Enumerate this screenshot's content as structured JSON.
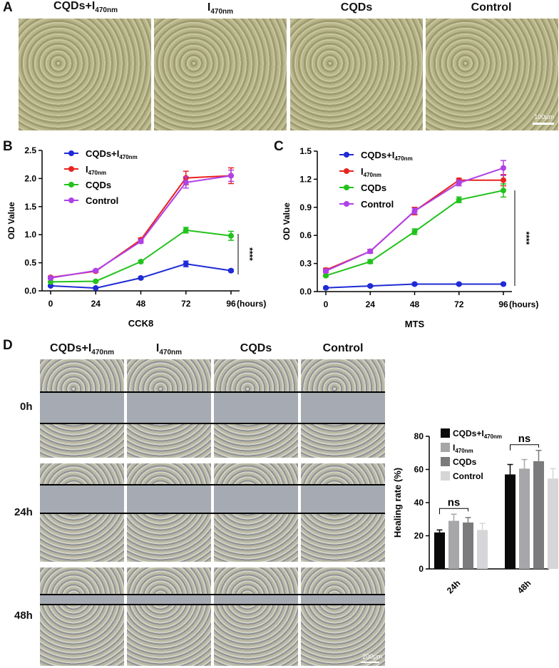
{
  "panel_labels": {
    "a": "A",
    "b": "B",
    "c": "C",
    "d": "D"
  },
  "panel_a": {
    "titles": [
      {
        "main": "CQDs+I",
        "sub": "470nm"
      },
      {
        "main": "I",
        "sub": "470nm"
      },
      {
        "main": "CQDs",
        "sub": ""
      },
      {
        "main": "Control",
        "sub": ""
      }
    ],
    "scale_bar": "100μm"
  },
  "panel_d": {
    "titles": [
      {
        "main": "CQDs+I",
        "sub": "470nm"
      },
      {
        "main": "I",
        "sub": "470nm"
      },
      {
        "main": "CQDs",
        "sub": ""
      },
      {
        "main": "Control",
        "sub": ""
      }
    ],
    "rows": [
      "0h",
      "24h",
      "48h"
    ],
    "scale_bar": "200μm"
  },
  "chart_data": [
    {
      "id": "B",
      "type": "line",
      "xlabel": "CCK8",
      "ylabel": "OD Value",
      "x": [
        0,
        24,
        48,
        72,
        96
      ],
      "x_ticks": [
        "0",
        "24",
        "48",
        "72",
        "96"
      ],
      "x_unit": "(hours)",
      "ylim": [
        0,
        2.5
      ],
      "y_ticks": [
        "0.0",
        "0.5",
        "1.0",
        "1.5",
        "2.0",
        "2.5"
      ],
      "series": [
        {
          "name": "CQDs+I",
          "sub": "470nm",
          "color": "#1f2bd6",
          "values": [
            0.09,
            0.05,
            0.23,
            0.48,
            0.36
          ],
          "err": [
            0.01,
            0.01,
            0.02,
            0.05,
            0.02
          ]
        },
        {
          "name": "I",
          "sub": "470nm",
          "color": "#e8231f",
          "values": [
            0.24,
            0.35,
            0.91,
            2.01,
            2.05
          ],
          "err": [
            0.02,
            0.02,
            0.03,
            0.12,
            0.14
          ]
        },
        {
          "name": "CQDs",
          "sub": "",
          "color": "#22c21c",
          "values": [
            0.16,
            0.17,
            0.52,
            1.08,
            0.98
          ],
          "err": [
            0.01,
            0.01,
            0.02,
            0.05,
            0.08
          ]
        },
        {
          "name": "Control",
          "sub": "",
          "color": "#b040e8",
          "values": [
            0.23,
            0.36,
            0.88,
            1.93,
            2.05
          ],
          "err": [
            0.02,
            0.02,
            0.03,
            0.1,
            0.1
          ]
        }
      ],
      "annotation": "****"
    },
    {
      "id": "C",
      "type": "line",
      "xlabel": "MTS",
      "ylabel": "OD Value",
      "x": [
        0,
        24,
        48,
        72,
        96
      ],
      "x_ticks": [
        "0",
        "24",
        "48",
        "72",
        "96"
      ],
      "x_unit": "(hours)",
      "ylim": [
        0,
        1.5
      ],
      "y_ticks": [
        "0.0",
        "0.3",
        "0.6",
        "0.9",
        "1.2",
        "1.5"
      ],
      "series": [
        {
          "name": "CQDs+I",
          "sub": "470nm",
          "color": "#1f2bd6",
          "values": [
            0.04,
            0.06,
            0.08,
            0.08,
            0.08
          ],
          "err": [
            0.01,
            0.01,
            0.01,
            0.01,
            0.01
          ]
        },
        {
          "name": "I",
          "sub": "470nm",
          "color": "#e8231f",
          "values": [
            0.23,
            0.43,
            0.86,
            1.19,
            1.19
          ],
          "err": [
            0.02,
            0.02,
            0.04,
            0.02,
            0.06
          ]
        },
        {
          "name": "CQDs",
          "sub": "",
          "color": "#22c21c",
          "values": [
            0.17,
            0.32,
            0.64,
            0.98,
            1.08
          ],
          "err": [
            0.01,
            0.02,
            0.03,
            0.03,
            0.07
          ]
        },
        {
          "name": "Control",
          "sub": "",
          "color": "#b040e8",
          "values": [
            0.22,
            0.43,
            0.86,
            1.16,
            1.32
          ],
          "err": [
            0.02,
            0.02,
            0.03,
            0.03,
            0.08
          ]
        }
      ],
      "annotation": "****"
    },
    {
      "id": "D",
      "type": "bar",
      "ylabel": "Healing rate (%)",
      "categories": [
        "24h",
        "48h"
      ],
      "ylim": [
        0,
        80
      ],
      "y_ticks": [
        "0",
        "20",
        "40",
        "60",
        "80"
      ],
      "series": [
        {
          "name": "CQDs+I",
          "sub": "470nm",
          "color": "#0a0a0a",
          "values": [
            22,
            57
          ],
          "err": [
            1.5,
            6
          ]
        },
        {
          "name": "I",
          "sub": "470nm",
          "color": "#a7a7a9",
          "values": [
            29,
            60.5
          ],
          "err": [
            4,
            5.5
          ]
        },
        {
          "name": "CQDs",
          "sub": "",
          "color": "#7b7b7d",
          "values": [
            28,
            65
          ],
          "err": [
            3,
            6.5
          ]
        },
        {
          "name": "Control",
          "sub": "",
          "color": "#d6d6d8",
          "values": [
            23.5,
            54.5
          ],
          "err": [
            4,
            6
          ]
        }
      ],
      "annotations": [
        "ns",
        "ns"
      ]
    }
  ]
}
